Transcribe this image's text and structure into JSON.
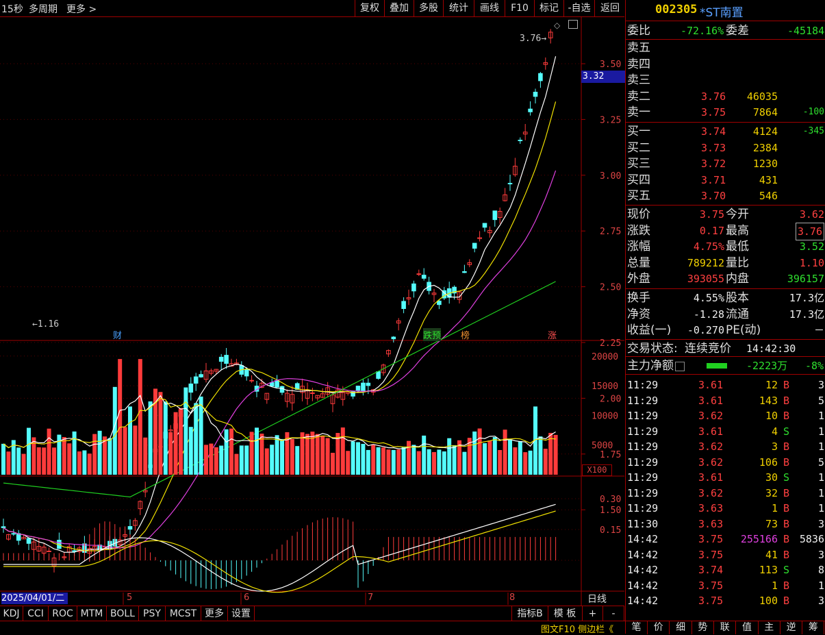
{
  "toolbar": {
    "left_items": [
      "15秒",
      "多周期",
      "更多 >"
    ],
    "buttons": [
      "复权",
      "叠加",
      "多股",
      "统计",
      "画线",
      "F10",
      "标记",
      "-自选",
      "返回"
    ]
  },
  "stock": {
    "code": "002305",
    "name": "*ST南置"
  },
  "price_axis": [
    "3.50",
    "3.25",
    "3.00",
    "2.75",
    "2.50",
    "2.25",
    "2.00",
    "1.75",
    "1.50"
  ],
  "price_tag": "3.32",
  "annot_high": "3.76",
  "annot_low": "1.16",
  "markers": {
    "cai": "财",
    "diyu": "跌预",
    "bang": "榜",
    "zhang": "涨"
  },
  "volume_axis": [
    "20000",
    "15000",
    "10000",
    "5000"
  ],
  "volume_unit": "X100",
  "macd_axis": [
    "0.30",
    "0.15"
  ],
  "date_axis": {
    "start": "2025/04/01/二",
    "labels": [
      "5",
      "6",
      "7",
      "8"
    ],
    "period": "日线"
  },
  "indicator_tabs": [
    "KDJ",
    "CCI",
    "ROC",
    "MTM",
    "BOLL",
    "PSY",
    "MCST",
    "更多",
    "设置"
  ],
  "indicator_right": [
    "指标B",
    "模 板",
    "+",
    "-"
  ],
  "orderbook": {
    "weibi_label": "委比",
    "weibi": "-72.16%",
    "weicha_label": "委差",
    "weicha": "-45184",
    "asks": [
      {
        "label": "卖五",
        "price": "",
        "vol": "",
        "chg": ""
      },
      {
        "label": "卖四",
        "price": "",
        "vol": "",
        "chg": ""
      },
      {
        "label": "卖三",
        "price": "",
        "vol": "",
        "chg": ""
      },
      {
        "label": "卖二",
        "price": "3.76",
        "vol": "46035",
        "chg": ""
      },
      {
        "label": "卖一",
        "price": "3.75",
        "vol": "7864",
        "chg": "-100"
      }
    ],
    "bids": [
      {
        "label": "买一",
        "price": "3.74",
        "vol": "4124",
        "chg": "-345"
      },
      {
        "label": "买二",
        "price": "3.73",
        "vol": "2384",
        "chg": ""
      },
      {
        "label": "买三",
        "price": "3.72",
        "vol": "1230",
        "chg": ""
      },
      {
        "label": "买四",
        "price": "3.71",
        "vol": "431",
        "chg": ""
      },
      {
        "label": "买五",
        "price": "3.70",
        "vol": "546",
        "chg": ""
      }
    ]
  },
  "quote": [
    {
      "l1": "现价",
      "v1": "3.75",
      "l2": "今开",
      "v2": "3.62"
    },
    {
      "l1": "涨跌",
      "v1": "0.17",
      "l2": "最高",
      "v2": "3.76"
    },
    {
      "l1": "涨幅",
      "v1": "4.75%",
      "l2": "最低",
      "v2": "3.52"
    },
    {
      "l1": "总量",
      "v1": "789212",
      "l2": "量比",
      "v2": "1.10"
    },
    {
      "l1": "外盘",
      "v1": "393055",
      "l2": "内盘",
      "v2": "396157"
    }
  ],
  "fund": [
    {
      "l1": "换手",
      "v1": "4.55%",
      "l2": "股本",
      "v2": "17.3亿"
    },
    {
      "l1": "净资",
      "v1": "-1.28",
      "l2": "流通",
      "v2": "17.3亿"
    },
    {
      "l1": "收益(一)",
      "v1": "-0.270",
      "l2": "PE(动)",
      "v2": "－"
    }
  ],
  "trade_status": {
    "label": "交易状态:",
    "value": "连续竞价",
    "time": "14:42:30"
  },
  "mainflow": {
    "label": "主力净额",
    "value": "-2223万",
    "pct": "-8%"
  },
  "ticks": [
    {
      "t": "11:29",
      "p": "3.61",
      "v": "12",
      "bs": "B",
      "n": "3"
    },
    {
      "t": "11:29",
      "p": "3.61",
      "v": "143",
      "bs": "B",
      "n": "5"
    },
    {
      "t": "11:29",
      "p": "3.62",
      "v": "10",
      "bs": "B",
      "n": "1"
    },
    {
      "t": "11:29",
      "p": "3.61",
      "v": "4",
      "bs": "S",
      "n": "1"
    },
    {
      "t": "11:29",
      "p": "3.62",
      "v": "3",
      "bs": "B",
      "n": "1"
    },
    {
      "t": "11:29",
      "p": "3.62",
      "v": "106",
      "bs": "B",
      "n": "5"
    },
    {
      "t": "11:29",
      "p": "3.61",
      "v": "30",
      "bs": "S",
      "n": "1"
    },
    {
      "t": "11:29",
      "p": "3.62",
      "v": "32",
      "bs": "B",
      "n": "1"
    },
    {
      "t": "11:29",
      "p": "3.63",
      "v": "1",
      "bs": "B",
      "n": "1"
    },
    {
      "t": "11:30",
      "p": "3.63",
      "v": "73",
      "bs": "B",
      "n": "3"
    },
    {
      "t": "14:42",
      "p": "3.75",
      "v": "255166",
      "bs": "B",
      "n": "5836"
    },
    {
      "t": "14:42",
      "p": "3.75",
      "v": "41",
      "bs": "B",
      "n": "3"
    },
    {
      "t": "14:42",
      "p": "3.74",
      "v": "113",
      "bs": "S",
      "n": "8"
    },
    {
      "t": "14:42",
      "p": "3.75",
      "v": "1",
      "bs": "B",
      "n": "1"
    },
    {
      "t": "14:42",
      "p": "3.75",
      "v": "100",
      "bs": "B",
      "n": "3"
    }
  ],
  "bottom_bar": {
    "left_link": "图文F10 侧边栏《",
    "tabs": [
      "笔",
      "价",
      "细",
      "势",
      "联",
      "值",
      "主",
      "逆",
      "筹"
    ]
  },
  "colors": {
    "up": "#ff3b3b",
    "down": "#54fcfc",
    "ma5": "#ffffff",
    "ma10": "#f0e000",
    "ma20": "#e040e0",
    "ma60": "#20d020",
    "grid": "#a00000"
  }
}
